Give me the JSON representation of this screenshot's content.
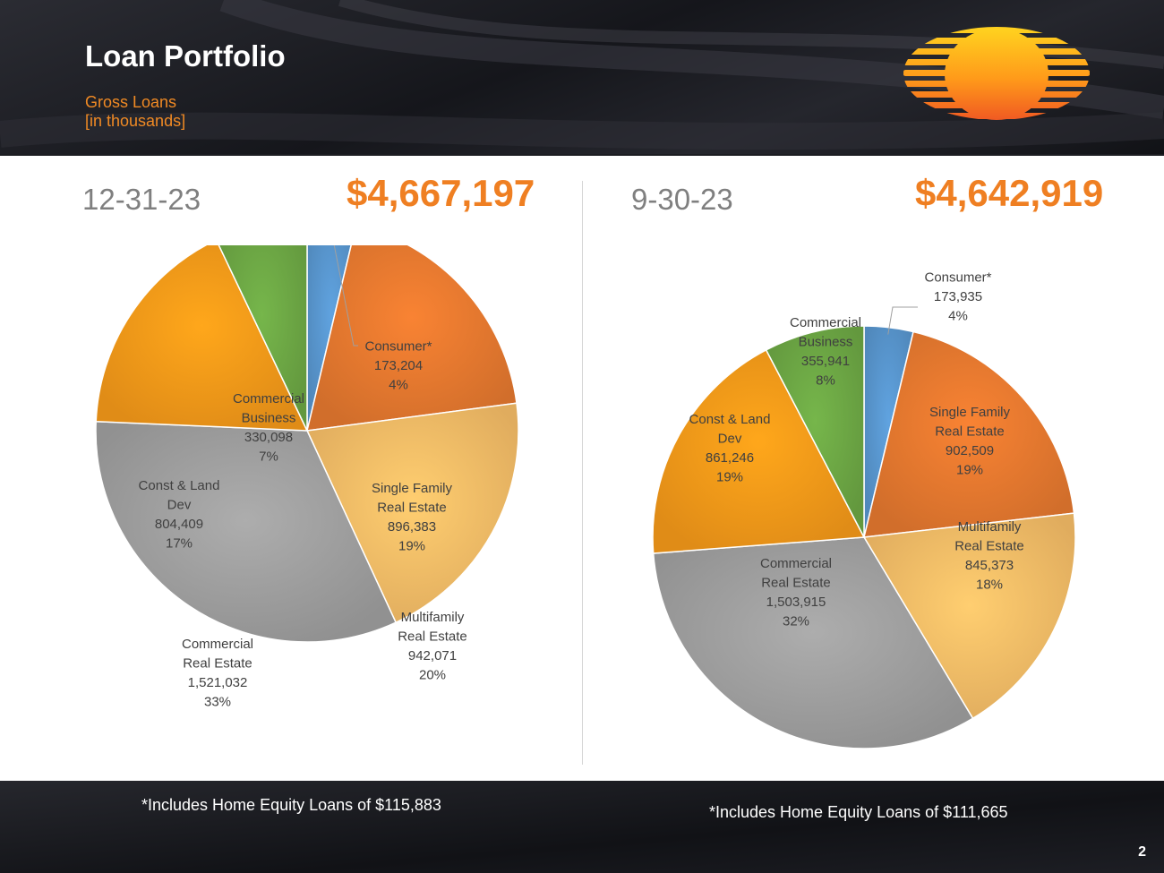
{
  "header": {
    "title": "Loan Portfolio",
    "subtitle_line1": "Gross Loans",
    "subtitle_line2": "[in thousands]"
  },
  "left": {
    "date": "12-31-23",
    "total": "$4,667,197",
    "footnote": "*Includes Home Equity Loans of $115,883"
  },
  "right": {
    "date": "9-30-23",
    "total": "$4,642,919",
    "footnote": "*Includes Home Equity Loans of $111,665"
  },
  "page_number": "2",
  "colors": {
    "consumer": "#5b9bd5",
    "single_family": "#ed7d31",
    "multifamily": "#ffc46b",
    "commercial_re": "#a5a5a5",
    "const_land": "#ff9f1a",
    "commercial_business": "#70ad47",
    "accent": "#ef7f22"
  },
  "chart_data": [
    {
      "type": "pie",
      "title": "12-31-23",
      "slices": [
        {
          "label": [
            "Consumer*"
          ],
          "value": 173204,
          "value_text": "173,204",
          "pct": "4%",
          "color": "#5b9bd5"
        },
        {
          "label": [
            "Single Family",
            "Real Estate"
          ],
          "value": 896383,
          "value_text": "896,383",
          "pct": "19%",
          "color": "#ed7d31"
        },
        {
          "label": [
            "Multifamily",
            "Real Estate"
          ],
          "value": 942071,
          "value_text": "942,071",
          "pct": "20%",
          "color": "#ffc46b"
        },
        {
          "label": [
            "Commercial",
            "Real Estate"
          ],
          "value": 1521032,
          "value_text": "1,521,032",
          "pct": "33%",
          "color": "#a5a5a5"
        },
        {
          "label": [
            "Const & Land",
            "Dev"
          ],
          "value": 804409,
          "value_text": "804,409",
          "pct": "17%",
          "color": "#ff9f1a"
        },
        {
          "label": [
            "Commercial",
            "Business"
          ],
          "value": 330098,
          "value_text": "330,098",
          "pct": "7%",
          "color": "#70ad47"
        }
      ]
    },
    {
      "type": "pie",
      "title": "9-30-23",
      "slices": [
        {
          "label": [
            "Consumer*"
          ],
          "value": 173935,
          "value_text": "173,935",
          "pct": "4%",
          "color": "#5b9bd5"
        },
        {
          "label": [
            "Single Family",
            "Real Estate"
          ],
          "value": 902509,
          "value_text": "902,509",
          "pct": "19%",
          "color": "#ed7d31"
        },
        {
          "label": [
            "Multifamily",
            "Real Estate"
          ],
          "value": 845373,
          "value_text": "845,373",
          "pct": "18%",
          "color": "#ffc46b"
        },
        {
          "label": [
            "Commercial",
            "Real Estate"
          ],
          "value": 1503915,
          "value_text": "1,503,915",
          "pct": "32%",
          "color": "#a5a5a5"
        },
        {
          "label": [
            "Const & Land",
            "Dev"
          ],
          "value": 861246,
          "value_text": "861,246",
          "pct": "19%",
          "color": "#ff9f1a"
        },
        {
          "label": [
            "Commercial",
            "Business"
          ],
          "value": 355941,
          "value_text": "355,941",
          "pct": "8%",
          "color": "#70ad47"
        }
      ]
    }
  ]
}
